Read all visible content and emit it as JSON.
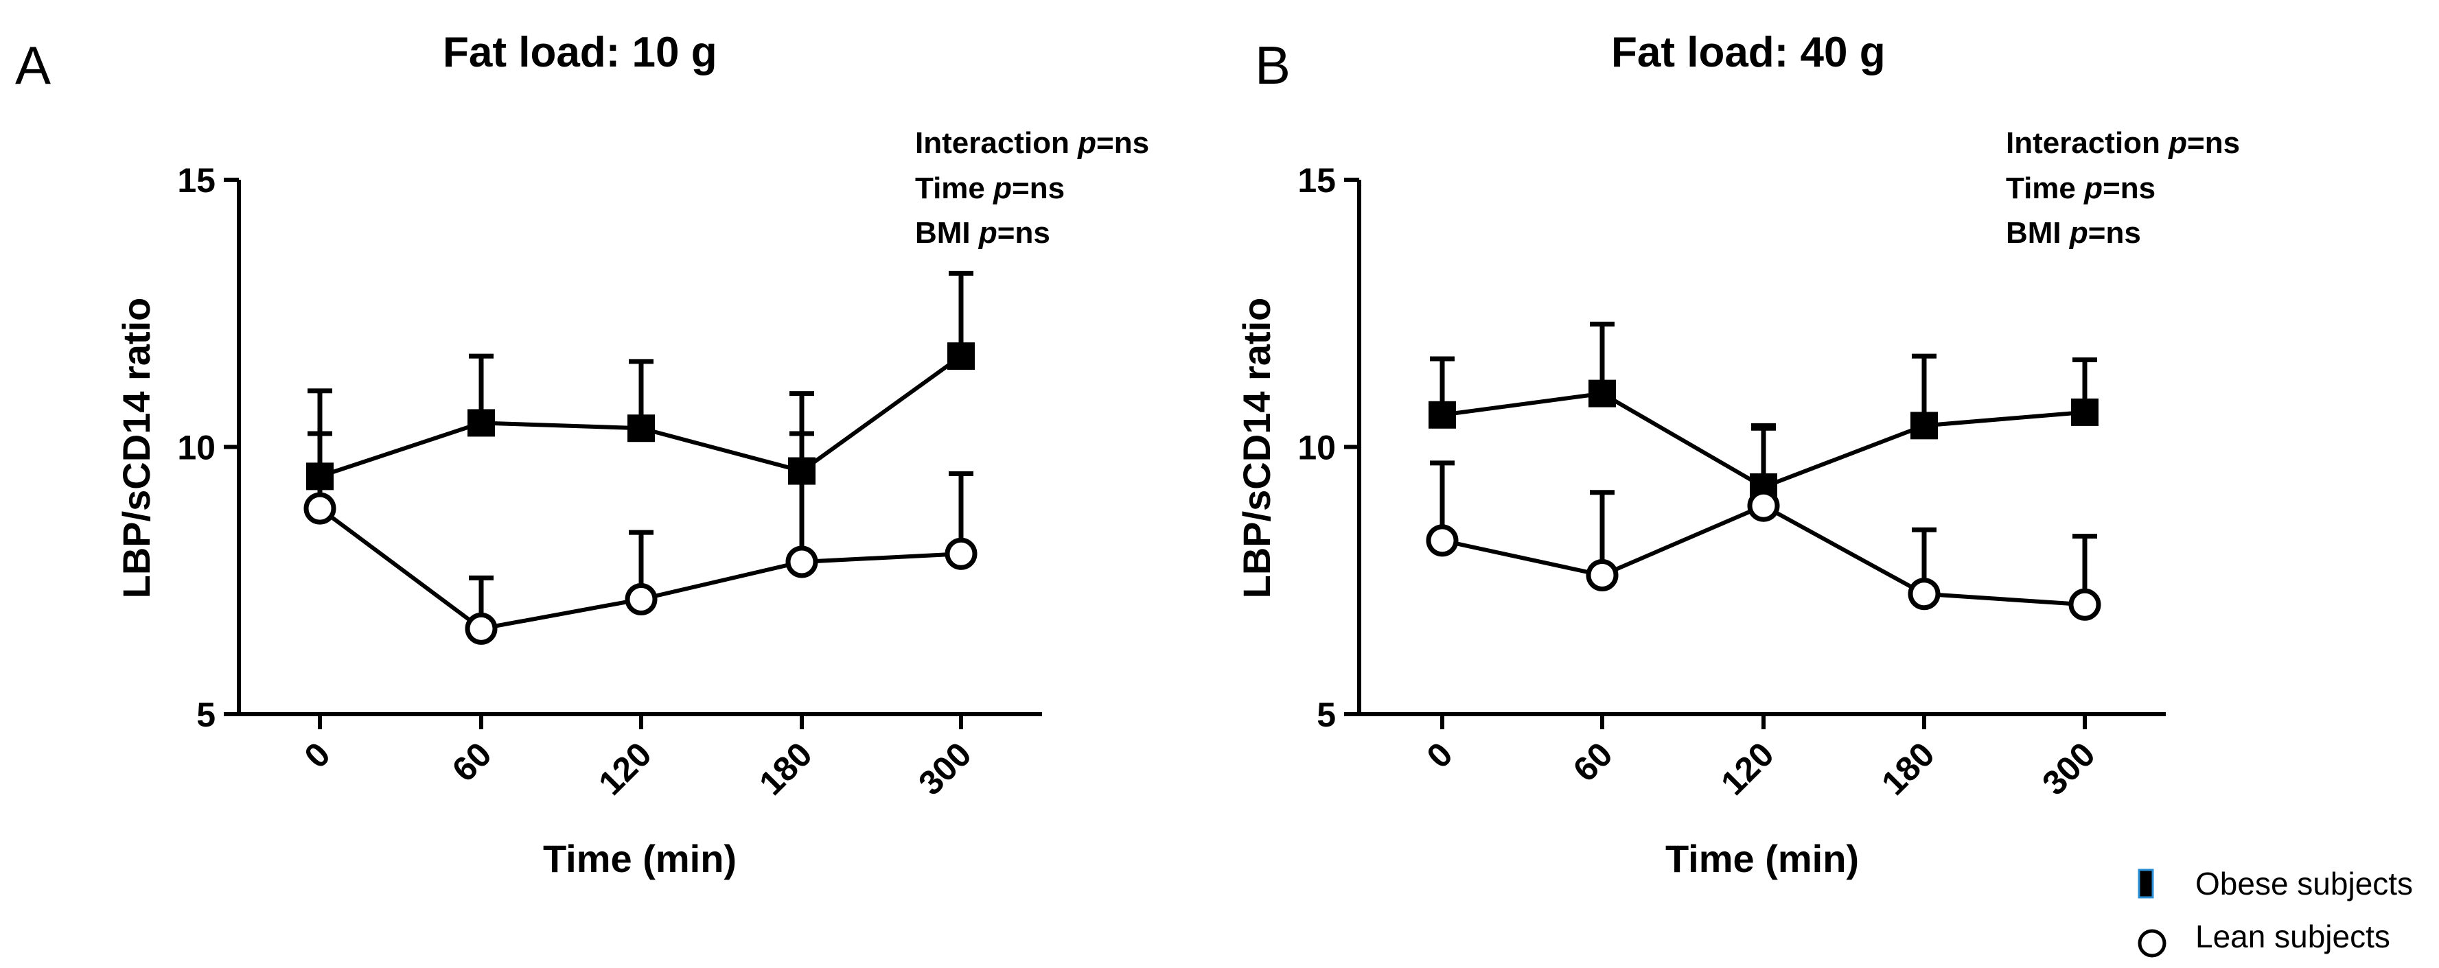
{
  "chart_data": [
    {
      "panel": "A",
      "type": "line",
      "title": "Fat load: 10 g",
      "xlabel": "Time (min)",
      "ylabel": "LBP/sCD14 ratio",
      "categories": [
        "0",
        "60",
        "120",
        "180",
        "300"
      ],
      "ylim": [
        5,
        15
      ],
      "yticks": [
        "5",
        "10",
        "15"
      ],
      "annotations": [
        {
          "prefix": "Interaction ",
          "p": "p",
          "suffix": "=ns"
        },
        {
          "prefix": "Time ",
          "p": "p",
          "suffix": "=ns"
        },
        {
          "prefix": "BMI ",
          "p": "p",
          "suffix": "=ns"
        }
      ],
      "series": [
        {
          "name": "Obese subjects",
          "marker": "filled-square",
          "values": [
            9.45,
            10.45,
            10.35,
            9.55,
            11.7
          ],
          "error": [
            1.6,
            1.25,
            1.25,
            1.45,
            1.55
          ]
        },
        {
          "name": "Lean subjects",
          "marker": "open-circle",
          "values": [
            8.85,
            6.6,
            7.15,
            7.85,
            8.0
          ],
          "error": [
            1.4,
            0.95,
            1.25,
            2.4,
            1.5
          ]
        }
      ]
    },
    {
      "panel": "B",
      "type": "line",
      "title": "Fat load: 40 g",
      "xlabel": "Time (min)",
      "ylabel": "LBP/sCD14 ratio",
      "categories": [
        "0",
        "60",
        "120",
        "180",
        "300"
      ],
      "ylim": [
        5,
        15
      ],
      "yticks": [
        "5",
        "10",
        "15"
      ],
      "annotations": [
        {
          "prefix": "Interaction ",
          "p": "p",
          "suffix": "=ns"
        },
        {
          "prefix": "Time ",
          "p": "p",
          "suffix": "=ns"
        },
        {
          "prefix": "BMI ",
          "p": "p",
          "suffix": "=ns"
        }
      ],
      "series": [
        {
          "name": "Obese subjects",
          "marker": "filled-square",
          "values": [
            10.6,
            11.0,
            9.25,
            10.4,
            10.65
          ],
          "error": [
            1.05,
            1.3,
            1.1,
            1.3,
            0.98
          ]
        },
        {
          "name": "Lean subjects",
          "marker": "open-circle",
          "values": [
            8.25,
            7.6,
            8.9,
            7.25,
            7.05
          ],
          "error": [
            1.45,
            1.55,
            1.5,
            1.2,
            1.28
          ]
        }
      ]
    }
  ],
  "legend": [
    {
      "label": "Obese subjects",
      "marker": "filled-square"
    },
    {
      "label": "Lean subjects",
      "marker": "open-circle"
    }
  ]
}
